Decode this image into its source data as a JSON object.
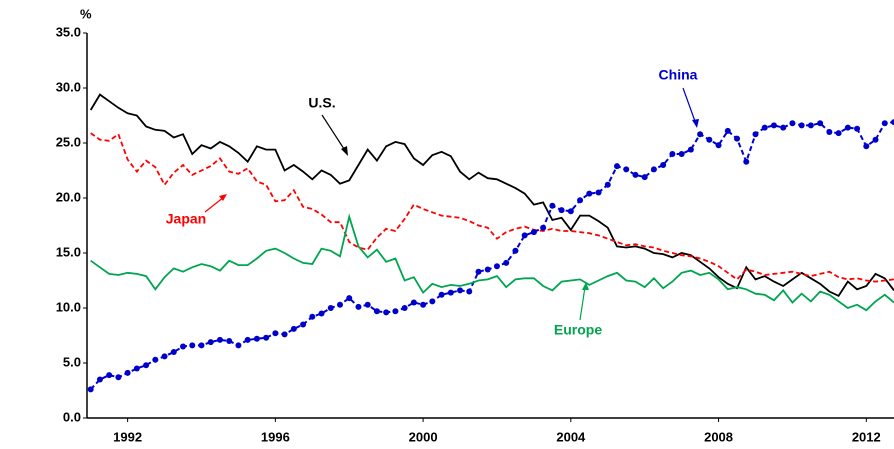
{
  "chart_data": {
    "type": "line",
    "y_label": "%",
    "xlim": [
      1990.9,
      2012.75
    ],
    "xticks": [
      1992,
      1996,
      2000,
      2004,
      2008,
      2012
    ],
    "ylim": [
      0,
      35
    ],
    "yticks": [
      {
        "value": 0,
        "label": "0.0"
      },
      {
        "value": 5,
        "label": "5.0"
      },
      {
        "value": 10,
        "label": "10.0"
      },
      {
        "value": 15,
        "label": "15.0"
      },
      {
        "value": 20,
        "label": "20.0"
      },
      {
        "value": 25,
        "label": "25.0"
      },
      {
        "value": 30,
        "label": "30.0"
      },
      {
        "value": 35,
        "label": "35.0"
      }
    ],
    "grid": false,
    "x": [
      1991,
      1991.25,
      1991.5,
      1991.75,
      1992,
      1992.25,
      1992.5,
      1992.75,
      1993,
      1993.25,
      1993.5,
      1993.75,
      1994,
      1994.25,
      1994.5,
      1994.75,
      1995,
      1995.25,
      1995.5,
      1995.75,
      1996,
      1996.25,
      1996.5,
      1996.75,
      1997,
      1997.25,
      1997.5,
      1997.75,
      1998,
      1998.25,
      1998.5,
      1998.75,
      1999,
      1999.25,
      1999.5,
      1999.75,
      2000,
      2000.25,
      2000.5,
      2000.75,
      2001,
      2001.25,
      2001.5,
      2001.75,
      2002,
      2002.25,
      2002.5,
      2002.75,
      2003,
      2003.25,
      2003.5,
      2003.75,
      2004,
      2004.25,
      2004.5,
      2004.75,
      2005,
      2005.25,
      2005.5,
      2005.75,
      2006,
      2006.25,
      2006.5,
      2006.75,
      2007,
      2007.25,
      2007.5,
      2007.75,
      2008,
      2008.25,
      2008.5,
      2008.75,
      2009,
      2009.25,
      2009.5,
      2009.75,
      2010,
      2010.25,
      2010.5,
      2010.75,
      2011,
      2011.25,
      2011.5,
      2011.75,
      2012,
      2012.25,
      2012.5,
      2012.75
    ],
    "series": [
      {
        "name": "U.S.",
        "color": "#000000",
        "style": "solid",
        "markers": false,
        "values": [
          28.0,
          29.4,
          28.8,
          28.2,
          27.7,
          27.5,
          26.5,
          26.2,
          26.1,
          25.5,
          25.8,
          24.0,
          24.8,
          24.5,
          25.1,
          24.7,
          24.1,
          23.3,
          24.7,
          24.4,
          24.4,
          22.5,
          23.0,
          22.4,
          21.7,
          22.5,
          22.1,
          21.3,
          21.6,
          23.0,
          24.4,
          23.4,
          24.7,
          25.1,
          24.9,
          23.6,
          23.0,
          23.9,
          24.2,
          23.8,
          22.4,
          21.7,
          22.3,
          21.8,
          21.7,
          21.3,
          20.9,
          20.4,
          19.4,
          19.6,
          18.0,
          18.2,
          17.1,
          18.4,
          18.4,
          17.9,
          17.3,
          15.6,
          15.5,
          15.6,
          15.4,
          15.0,
          14.9,
          14.6,
          15.0,
          14.8,
          14.2,
          13.6,
          12.8,
          12.2,
          11.8,
          13.7,
          12.6,
          12.9,
          12.4,
          12.0,
          12.6,
          13.2,
          12.7,
          12.2,
          11.5,
          11.1,
          12.4,
          11.7,
          12.0,
          13.1,
          12.7,
          11.6
        ]
      },
      {
        "name": "Japan",
        "color": "#ff0000",
        "style": "dashed",
        "markers": false,
        "values": [
          25.9,
          25.3,
          25.2,
          25.8,
          23.5,
          22.4,
          23.4,
          22.8,
          21.2,
          22.3,
          23.0,
          22.1,
          22.5,
          22.9,
          23.6,
          22.4,
          22.2,
          22.7,
          21.5,
          21.2,
          19.7,
          19.8,
          20.7,
          19.2,
          19.0,
          18.5,
          17.8,
          17.8,
          16.0,
          15.5,
          15.3,
          16.4,
          17.2,
          17.0,
          18.1,
          19.4,
          19.0,
          18.7,
          18.4,
          18.3,
          18.2,
          17.9,
          17.5,
          17.3,
          16.3,
          16.9,
          17.2,
          17.4,
          17.1,
          17.0,
          17.2,
          17.0,
          17.0,
          16.9,
          16.8,
          16.6,
          16.3,
          16.0,
          15.7,
          15.8,
          15.6,
          15.5,
          15.2,
          15.0,
          14.8,
          14.7,
          14.5,
          14.2,
          13.8,
          13.2,
          12.6,
          13.5,
          13.3,
          13.0,
          13.1,
          13.2,
          13.3,
          13.1,
          12.9,
          13.1,
          13.3,
          12.8,
          12.6,
          12.7,
          12.5,
          12.4,
          12.5,
          12.6
        ]
      },
      {
        "name": "China",
        "color": "#0000cc",
        "style": "dashed",
        "markers": true,
        "values": [
          2.6,
          3.5,
          3.9,
          3.7,
          4.1,
          4.5,
          4.8,
          5.3,
          5.6,
          6.0,
          6.5,
          6.6,
          6.6,
          6.9,
          7.1,
          7.0,
          6.6,
          7.1,
          7.2,
          7.3,
          7.7,
          7.6,
          8.1,
          8.5,
          9.2,
          9.5,
          10.0,
          10.3,
          10.9,
          10.1,
          10.3,
          9.7,
          9.6,
          9.7,
          10.0,
          10.5,
          10.3,
          10.6,
          11.2,
          11.4,
          11.6,
          11.5,
          13.3,
          13.5,
          13.8,
          14.1,
          15.2,
          16.6,
          16.9,
          17.3,
          19.3,
          18.9,
          18.8,
          19.8,
          20.4,
          20.5,
          21.2,
          22.9,
          22.6,
          22.1,
          21.9,
          22.6,
          23.0,
          24.0,
          24.0,
          24.4,
          25.8,
          25.3,
          24.8,
          26.1,
          25.4,
          23.3,
          25.8,
          26.4,
          26.6,
          26.4,
          26.8,
          26.6,
          26.6,
          26.8,
          26.0,
          25.9,
          26.4,
          26.3,
          24.7,
          25.3,
          26.8,
          26.9
        ]
      },
      {
        "name": "Europe",
        "color": "#00a550",
        "style": "solid",
        "markers": false,
        "values": [
          14.3,
          13.7,
          13.1,
          13.0,
          13.2,
          13.1,
          12.9,
          11.7,
          12.8,
          13.6,
          13.3,
          13.7,
          14.0,
          13.8,
          13.4,
          14.3,
          13.9,
          13.9,
          14.5,
          15.2,
          15.4,
          15.0,
          14.5,
          14.1,
          14.0,
          15.4,
          15.2,
          14.7,
          18.3,
          15.6,
          14.6,
          15.3,
          14.2,
          14.5,
          12.5,
          12.8,
          11.4,
          12.2,
          11.9,
          12.1,
          12.0,
          12.2,
          12.5,
          12.6,
          12.9,
          11.9,
          12.6,
          12.7,
          12.7,
          12.0,
          11.6,
          12.4,
          12.5,
          12.6,
          12.1,
          12.5,
          12.9,
          13.2,
          12.5,
          12.4,
          11.9,
          12.7,
          11.8,
          12.4,
          13.2,
          13.4,
          13.0,
          13.2,
          12.6,
          11.7,
          11.9,
          11.7,
          11.3,
          11.2,
          10.7,
          11.6,
          10.5,
          11.3,
          10.6,
          11.5,
          11.2,
          10.6,
          10.0,
          10.3,
          9.8,
          10.6,
          11.2,
          10.5
        ]
      }
    ]
  }
}
